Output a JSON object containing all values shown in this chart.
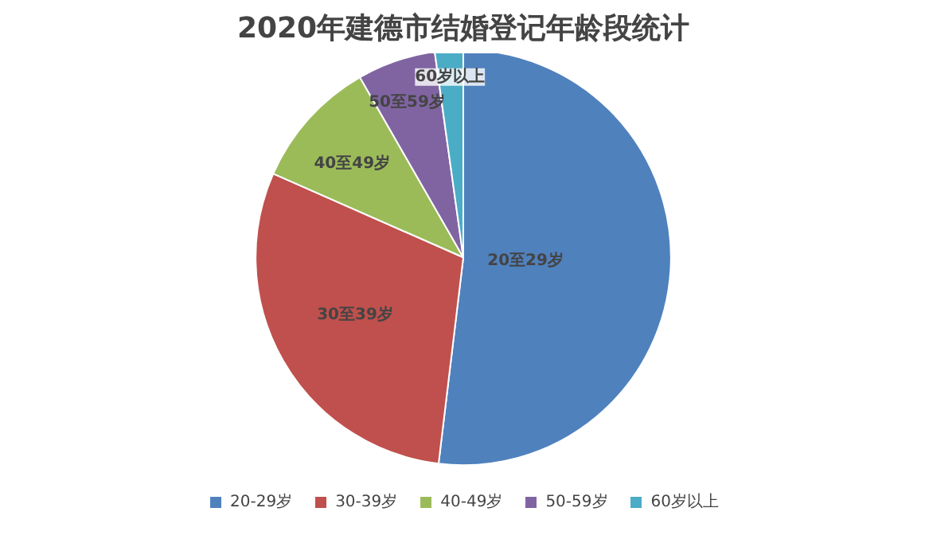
{
  "chart_data": {
    "type": "pie",
    "title": "2020年建德市结婚登记年龄段统计",
    "categories": [
      "20-29岁",
      "30-39岁",
      "40-49岁",
      "50-59岁",
      "60岁以上"
    ],
    "values": [
      51.9,
      29.7,
      10.1,
      6.1,
      2.2
    ],
    "colors": [
      "#4f81bd",
      "#c0504d",
      "#9bbb59",
      "#8064a2",
      "#4bacc6"
    ],
    "annotations": [
      "20至29岁",
      "30至39岁",
      "40至49岁",
      "50至59岁",
      "60岁以上"
    ],
    "legend": "bottom"
  }
}
